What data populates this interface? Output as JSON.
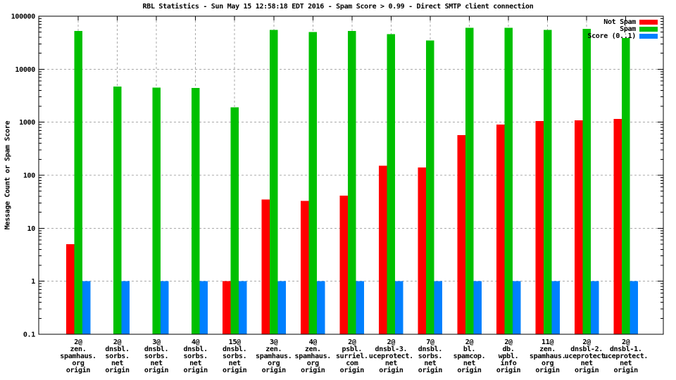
{
  "title": "RBL Statistics - Sun May 15 12:58:18 EDT 2016 - Spam Score > 0.99 - Direct SMTP client connection",
  "ylabel": "Message Count or Spam Score",
  "legend": {
    "not_spam": "Not Spam",
    "spam": "Spam",
    "score": "Score (0..1)"
  },
  "colors": {
    "not_spam": "#ff0000",
    "spam": "#00c000",
    "score": "#0080ff",
    "grid": "#a9a9a9",
    "axis": "#000000",
    "background": "#ffffff"
  },
  "chart_data": {
    "type": "bar",
    "yscale": "log",
    "ylim": [
      0.1,
      100000
    ],
    "grid": true,
    "legend_position": "top-right",
    "ytick_labels": [
      "100000",
      "10000",
      "1000",
      "100",
      "10",
      "1",
      "0.1"
    ],
    "ytick_values": [
      100000,
      10000,
      1000,
      100,
      10,
      1,
      0.1
    ],
    "hgrid_values": [
      10000,
      1000,
      100,
      10,
      1
    ],
    "title": "RBL Statistics - Sun May 15 12:58:18 EDT 2016 - Spam Score > 0.99 - Direct SMTP client connection",
    "xlabel": "",
    "ylabel": "Message Count or Spam Score",
    "categories": [
      [
        "2@",
        "zen.",
        "spamhaus.",
        "org",
        "origin"
      ],
      [
        "2@",
        "dnsbl.",
        "sorbs.",
        "net",
        "origin"
      ],
      [
        "3@",
        "dnsbl.",
        "sorbs.",
        "net",
        "origin"
      ],
      [
        "4@",
        "dnsbl.",
        "sorbs.",
        "net",
        "origin"
      ],
      [
        "15@",
        "dnsbl.",
        "sorbs.",
        "net",
        "origin"
      ],
      [
        "3@",
        "zen.",
        "spamhaus.",
        "org",
        "origin"
      ],
      [
        "4@",
        "zen.",
        "spamhaus.",
        "org",
        "origin"
      ],
      [
        "2@",
        "psbl.",
        "surriel.",
        "com",
        "origin"
      ],
      [
        "2@",
        "dnsbl-3.",
        "uceprotect.",
        "net",
        "origin"
      ],
      [
        "7@",
        "dnsbl.",
        "sorbs.",
        "net",
        "origin"
      ],
      [
        "2@",
        "bl.",
        "spamcop.",
        "net",
        "origin"
      ],
      [
        "2@",
        "db.",
        "wpbl.",
        "info",
        "origin"
      ],
      [
        "11@",
        "zen.",
        "spamhaus.",
        "org",
        "origin"
      ],
      [
        "2@",
        "dnsbl-2.",
        "uceprotect.",
        "net",
        "origin"
      ],
      [
        "2@",
        "dnsbl-1.",
        "uceprotect.",
        "net",
        "origin"
      ]
    ],
    "series": [
      {
        "name": "Not Spam",
        "color_key": "not_spam",
        "values": [
          5,
          0,
          0,
          0,
          1,
          35,
          33,
          41,
          150,
          140,
          570,
          900,
          1050,
          1080,
          1150
        ]
      },
      {
        "name": "Spam",
        "color_key": "spam",
        "values": [
          53000,
          4700,
          4500,
          4400,
          1900,
          55000,
          50000,
          53000,
          46000,
          35000,
          60000,
          60000,
          55000,
          58000,
          38500
        ]
      },
      {
        "name": "Score (0..1)",
        "color_key": "score",
        "values": [
          1,
          1,
          1,
          1,
          1,
          1,
          1,
          1,
          1,
          1,
          1,
          1,
          1,
          1,
          1
        ]
      }
    ]
  }
}
